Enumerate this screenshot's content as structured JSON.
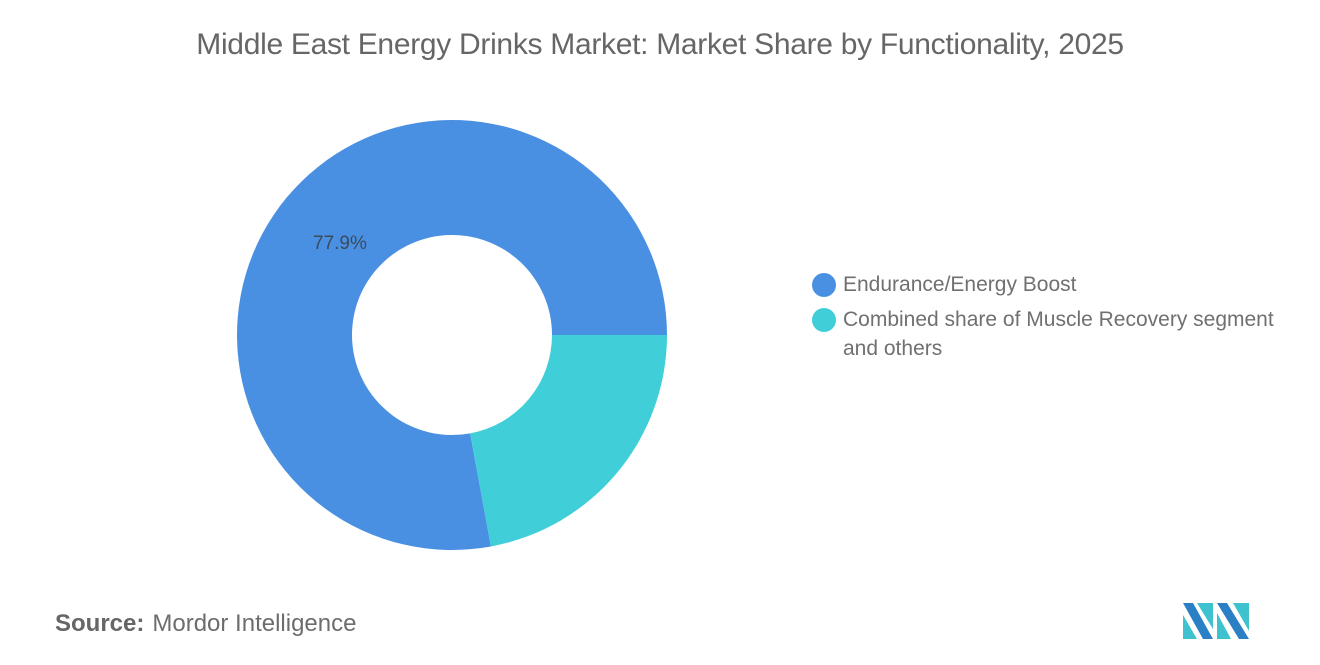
{
  "header": {
    "title": "Middle East Energy Drinks Market: Market Share by Functionality, 2025"
  },
  "chart_data": {
    "type": "pie",
    "subtype": "donut",
    "title": "Middle East Energy Drinks Market: Market Share by Functionality, 2025",
    "categories": [
      "Endurance/Energy Boost",
      "Combined share of Muscle Recovery segment and others"
    ],
    "values": [
      77.9,
      22.1
    ],
    "colors": [
      "#4A90E2",
      "#40CFD9"
    ],
    "data_labels": [
      "77.9%",
      ""
    ],
    "legend_position": "right",
    "units": "%"
  },
  "legend": {
    "items": [
      {
        "label": "Endurance/Energy Boost",
        "color": "#4A90E2"
      },
      {
        "label": "Combined share of Muscle Recovery segment and others",
        "color": "#40CFD9"
      }
    ]
  },
  "labels": {
    "slice_0": "77.9%"
  },
  "footer": {
    "source_key": "Source:",
    "source_value": "Mordor Intelligence",
    "logo": "mordor-intelligence-logo"
  }
}
